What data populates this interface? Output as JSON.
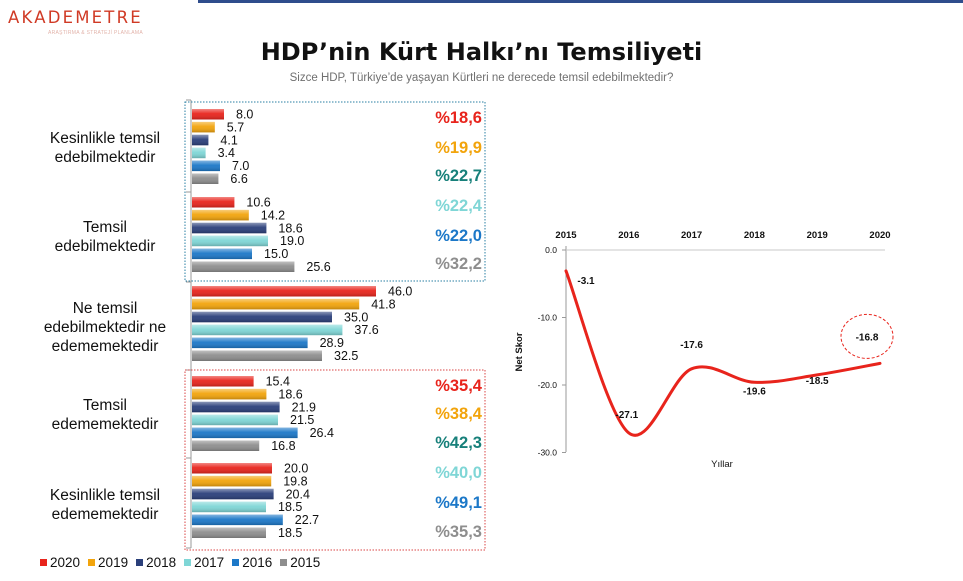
{
  "logo": {
    "text": "AKADEMETRE",
    "sub": "ARAŞTIRMA & STRATEJİ PLANLAMA"
  },
  "title": "HDP’nin Kürt Halkı’nı Temsiliyeti",
  "subtitle": "Sizce HDP, Türkiye’de yaşayan Kürtleri ne derecede temsil edebilmektedir?",
  "colors": {
    "2020": "#e8241c",
    "2019": "#f2a40c",
    "2018": "#2a3f7a",
    "2017": "#7fd6d6",
    "2016": "#1c78c8",
    "2015": "#8e8e8e"
  },
  "chart_data": [
    {
      "type": "bar",
      "orientation": "horizontal",
      "series_order": [
        "2020",
        "2019",
        "2018",
        "2017",
        "2016",
        "2015"
      ],
      "categories": [
        {
          "lines": [
            "Kesinlikle temsil",
            "edebilmektedir"
          ],
          "values": [
            8.0,
            5.7,
            4.1,
            3.4,
            7.0,
            6.6
          ]
        },
        {
          "lines": [
            "Temsil",
            "edebilmektedir"
          ],
          "values": [
            10.6,
            14.2,
            18.6,
            19.0,
            15.0,
            25.6
          ]
        },
        {
          "lines": [
            "Ne temsil",
            "edebilmektedir ne",
            "edememektedir"
          ],
          "values": [
            46.0,
            41.8,
            35.0,
            37.6,
            28.9,
            32.5
          ]
        },
        {
          "lines": [
            "Temsil",
            "edememektedir"
          ],
          "values": [
            15.4,
            18.6,
            21.9,
            21.5,
            26.4,
            16.8
          ]
        },
        {
          "lines": [
            "Kesinlikle temsil",
            "edememektedir"
          ],
          "values": [
            20.0,
            19.8,
            20.4,
            18.5,
            22.7,
            18.5
          ]
        }
      ],
      "value_labels": [
        [
          "8.0",
          "5.7",
          "4.1",
          "3.4",
          "7.0",
          "6.6"
        ],
        [
          "10.6",
          "14.2",
          "18.6",
          "19.0",
          "15.0",
          "25.6"
        ],
        [
          "46.0",
          "41.8",
          "35.0",
          "37.6",
          "28.9",
          "32.5"
        ],
        [
          "15.4",
          "18.6",
          "21.9",
          "21.5",
          "26.4",
          "16.8"
        ],
        [
          "20.0",
          "19.8",
          "20.4",
          "18.5",
          "22.7",
          "18.5"
        ]
      ],
      "totals": {
        "positive": [
          {
            "year": "2020",
            "label": "%18,6"
          },
          {
            "year": "2019",
            "label": "%19,9"
          },
          {
            "year": "2018",
            "label": "%22,7",
            "color": "#17807a"
          },
          {
            "year": "2017",
            "label": "%22,4"
          },
          {
            "year": "2016",
            "label": "%22,0"
          },
          {
            "year": "2015",
            "label": "%32,2"
          }
        ],
        "negative": [
          {
            "year": "2020",
            "label": "%35,4"
          },
          {
            "year": "2019",
            "label": "%38,4"
          },
          {
            "year": "2018",
            "label": "%42,3",
            "color": "#17807a"
          },
          {
            "year": "2017",
            "label": "%40,0"
          },
          {
            "year": "2016",
            "label": "%49,1"
          },
          {
            "year": "2015",
            "label": "%35,3"
          }
        ]
      },
      "legend": [
        "2020",
        "2019",
        "2018",
        "2017",
        "2016",
        "2015"
      ]
    },
    {
      "type": "line",
      "x": [
        "2015",
        "2016",
        "2017",
        "2018",
        "2019",
        "2020"
      ],
      "y": [
        -3.1,
        -27.1,
        -17.6,
        -19.6,
        -18.5,
        -16.8
      ],
      "labels": [
        "-3.1",
        "-27.1",
        "-17.6",
        "-19.6",
        "-18.5",
        "-16.8"
      ],
      "ylabel": "Net Skor",
      "xlabel": "Yıllar",
      "yticks": [
        "0.0",
        "-10.0",
        "-20.0",
        "-30.0"
      ],
      "ylim": [
        -30,
        0
      ],
      "line_color": "#e8241c",
      "highlight": "2020"
    }
  ]
}
